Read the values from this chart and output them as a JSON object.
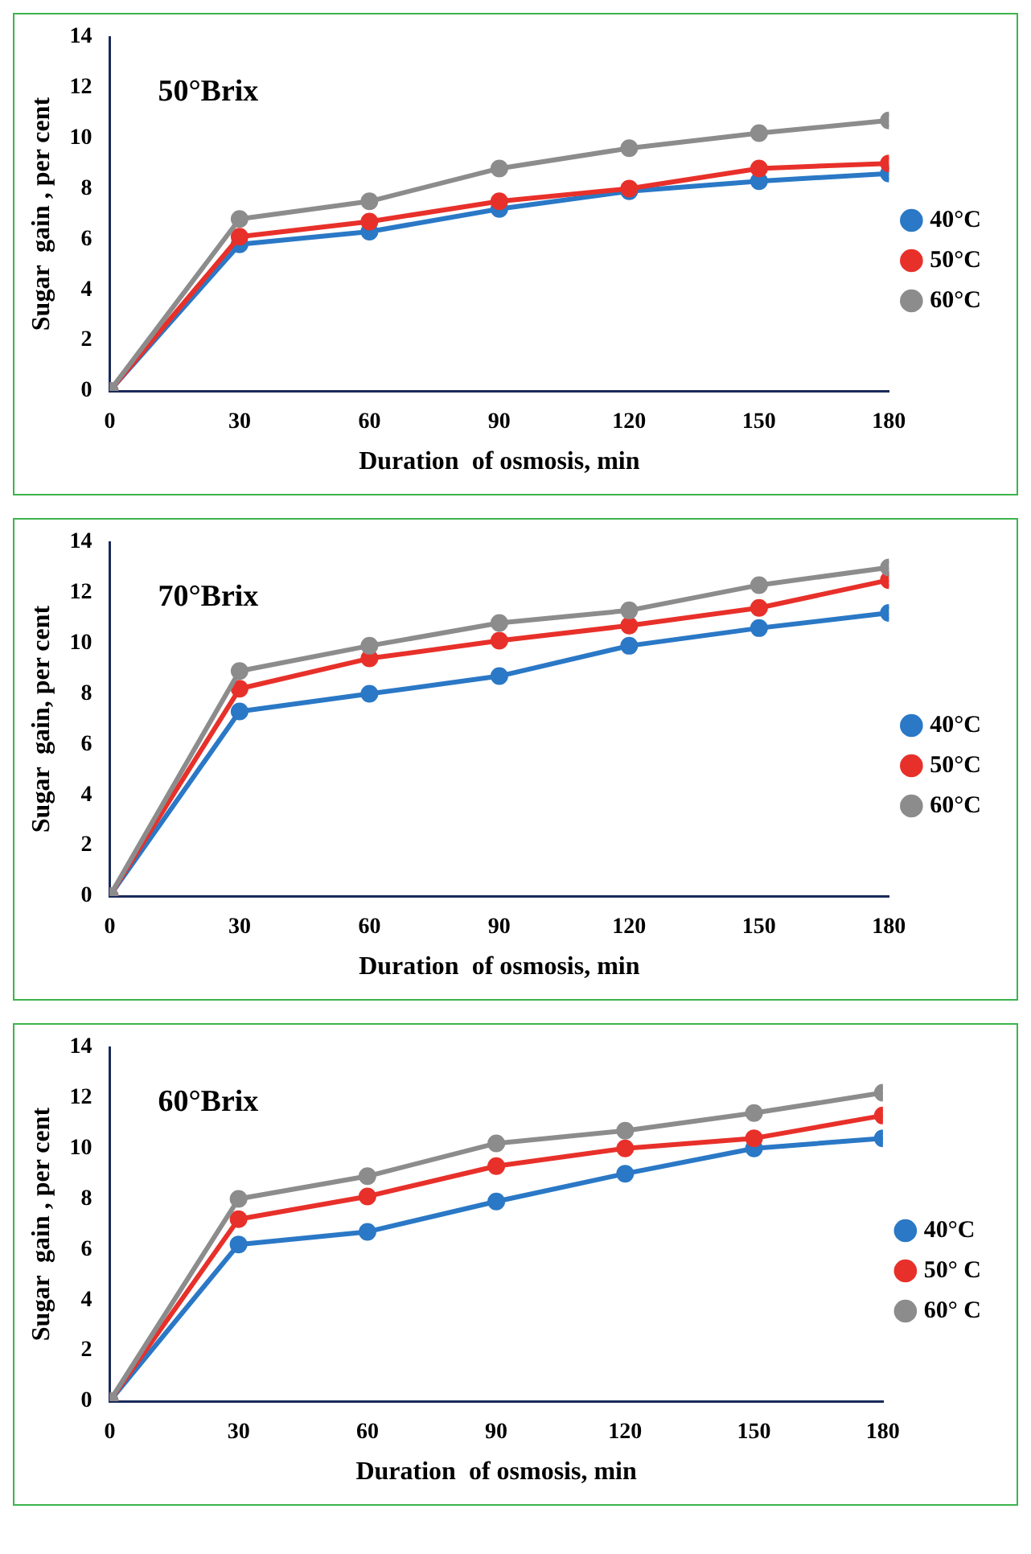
{
  "chart_data": [
    {
      "type": "line",
      "title": "50°Brix",
      "xlabel": "Duration  of osmosis, min",
      "ylabel": "Sugar  gain , per cent",
      "x": [
        0,
        30,
        60,
        90,
        120,
        150,
        180
      ],
      "xlim": [
        0,
        180
      ],
      "xticks": [
        0,
        30,
        60,
        90,
        120,
        150,
        180
      ],
      "ylim": [
        0,
        14
      ],
      "yticks": [
        0,
        2,
        4,
        6,
        8,
        10,
        12,
        14
      ],
      "legend": "right",
      "marker": "circle",
      "line_style": "solid",
      "series": [
        {
          "name": "40°C",
          "color": "#2a78c6",
          "values": [
            0,
            5.8,
            6.3,
            7.2,
            7.9,
            8.3,
            8.6
          ]
        },
        {
          "name": "50°C",
          "color": "#e8302a",
          "values": [
            0,
            6.1,
            6.7,
            7.5,
            8.0,
            8.8,
            9.0
          ]
        },
        {
          "name": "60°C",
          "color": "#8c8c8c",
          "values": [
            0,
            6.8,
            7.5,
            8.8,
            9.6,
            10.2,
            10.7
          ]
        }
      ]
    },
    {
      "type": "line",
      "title": "70°Brix",
      "xlabel": "Duration  of osmosis, min",
      "ylabel": "Sugar  gain, per cent",
      "x": [
        0,
        30,
        60,
        90,
        120,
        150,
        180
      ],
      "xlim": [
        0,
        180
      ],
      "xticks": [
        0,
        30,
        60,
        90,
        120,
        150,
        180
      ],
      "ylim": [
        0,
        14
      ],
      "yticks": [
        0,
        2,
        4,
        6,
        8,
        10,
        12,
        14
      ],
      "legend": "right",
      "marker": "circle",
      "line_style": "solid",
      "series": [
        {
          "name": "40°C",
          "color": "#2a78c6",
          "values": [
            0,
            7.3,
            8.0,
            8.7,
            9.9,
            10.6,
            11.2
          ]
        },
        {
          "name": "50°C",
          "color": "#e8302a",
          "values": [
            0,
            8.2,
            9.4,
            10.1,
            10.7,
            11.4,
            12.5
          ]
        },
        {
          "name": "60°C",
          "color": "#8c8c8c",
          "values": [
            0,
            8.9,
            9.9,
            10.8,
            11.3,
            12.3,
            13.0
          ]
        }
      ]
    },
    {
      "type": "line",
      "title": "60°Brix",
      "xlabel": "Duration  of osmosis, min",
      "ylabel": "Sugar  gain , per cent",
      "x": [
        0,
        30,
        60,
        90,
        120,
        150,
        180
      ],
      "xlim": [
        0,
        180
      ],
      "xticks": [
        0,
        30,
        60,
        90,
        120,
        150,
        180
      ],
      "ylim": [
        0,
        14
      ],
      "yticks": [
        0,
        2,
        4,
        6,
        8,
        10,
        12,
        14
      ],
      "legend": "right",
      "marker": "circle",
      "line_style": "solid",
      "series": [
        {
          "name": "40°C",
          "color": "#2a78c6",
          "values": [
            0,
            6.2,
            6.7,
            7.9,
            9.0,
            10.0,
            10.4
          ]
        },
        {
          "name": "50° C",
          "color": "#e8302a",
          "values": [
            0,
            7.2,
            8.1,
            9.3,
            10.0,
            10.4,
            11.3
          ]
        },
        {
          "name": "60° C",
          "color": "#8c8c8c",
          "values": [
            0,
            8.0,
            8.9,
            10.2,
            10.7,
            11.4,
            12.2
          ]
        }
      ]
    }
  ]
}
